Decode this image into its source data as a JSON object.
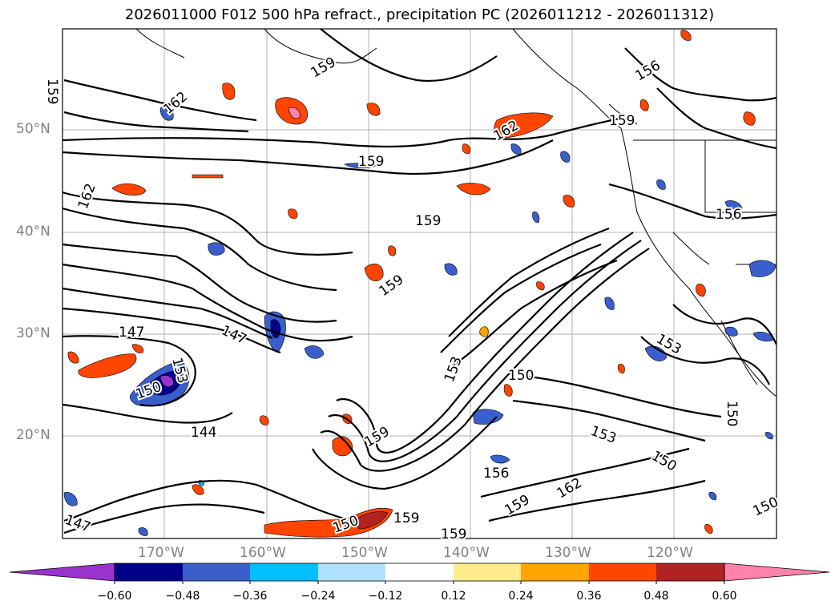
{
  "title": "2026011000 F012 500 hPa refract., precipitation PC (2026011212 - 2026011312)",
  "lat_labels": [
    "50°N",
    "40°N",
    "30°N",
    "20°N"
  ],
  "lon_labels": [
    "170°W",
    "160°W",
    "150°W",
    "140°W",
    "130°W",
    "120°W"
  ],
  "colorbar": {
    "ticks": [
      "−0.60",
      "−0.48",
      "−0.36",
      "−0.24",
      "−0.12",
      "0.12",
      "0.24",
      "0.36",
      "0.48",
      "0.60"
    ],
    "colors": [
      "#9a32cd",
      "#00008b",
      "#3a5fcd",
      "#00bfff",
      "#b0e2ff",
      "#ffffff",
      "#ffec8b",
      "#ffa500",
      "#ff4500",
      "#b22222",
      "#ff82ab"
    ]
  },
  "contour_labels": [
    {
      "text": "162"
    },
    {
      "text": "159"
    },
    {
      "text": "159"
    },
    {
      "text": "156"
    },
    {
      "text": "162"
    },
    {
      "text": "159"
    },
    {
      "text": "162"
    },
    {
      "text": "159"
    },
    {
      "text": "156"
    },
    {
      "text": "159"
    },
    {
      "text": "147"
    },
    {
      "text": "147"
    },
    {
      "text": "153"
    },
    {
      "text": "150"
    },
    {
      "text": "153"
    },
    {
      "text": "150"
    },
    {
      "text": "144"
    },
    {
      "text": "159"
    },
    {
      "text": "153"
    },
    {
      "text": "150"
    },
    {
      "text": "156"
    },
    {
      "text": "162"
    },
    {
      "text": "159"
    },
    {
      "text": "159"
    },
    {
      "text": "159"
    },
    {
      "text": "150"
    },
    {
      "text": "147"
    },
    {
      "text": "150"
    },
    {
      "text": "153"
    },
    {
      "text": "150"
    },
    {
      "text": "159"
    }
  ]
}
